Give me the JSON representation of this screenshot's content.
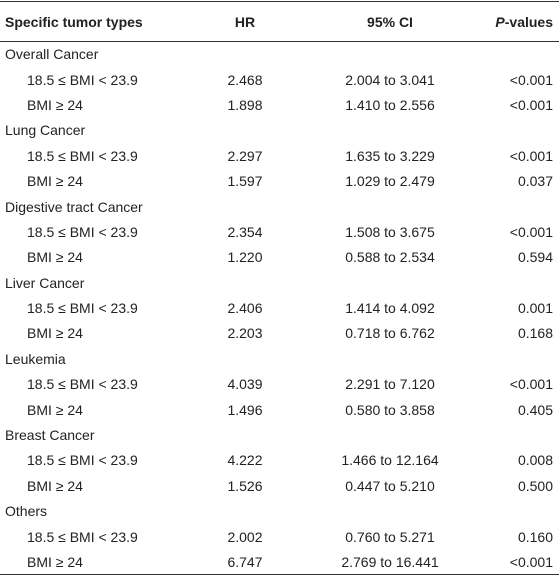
{
  "table": {
    "header": [
      "Specific tumor types",
      "HR",
      "95% CI",
      "P-values"
    ],
    "groups": [
      {
        "name": "Overall Cancer",
        "rows": [
          [
            "18.5 ≤ BMI < 23.9",
            "2.468",
            "2.004 to 3.041",
            "<0.001"
          ],
          [
            "BMI ≥ 24",
            "1.898",
            "1.410 to 2.556",
            "<0.001"
          ]
        ]
      },
      {
        "name": "Lung Cancer",
        "rows": [
          [
            "18.5 ≤ BMI < 23.9",
            "2.297",
            "1.635 to 3.229",
            "<0.001"
          ],
          [
            "BMI ≥ 24",
            "1.597",
            "1.029 to 2.479",
            "0.037"
          ]
        ]
      },
      {
        "name": "Digestive tract Cancer",
        "rows": [
          [
            "18.5 ≤ BMI < 23.9",
            "2.354",
            "1.508 to 3.675",
            "<0.001"
          ],
          [
            "BMI ≥ 24",
            "1.220",
            "0.588 to 2.534",
            "0.594"
          ]
        ]
      },
      {
        "name": "Liver Cancer",
        "rows": [
          [
            "18.5 ≤ BMI < 23.9",
            "2.406",
            "1.414 to 4.092",
            "0.001"
          ],
          [
            "BMI ≥ 24",
            "2.203",
            "0.718 to 6.762",
            "0.168"
          ]
        ]
      },
      {
        "name": "Leukemia",
        "rows": [
          [
            "18.5 ≤ BMI < 23.9",
            "4.039",
            "2.291 to 7.120",
            "<0.001"
          ],
          [
            "BMI ≥ 24",
            "1.496",
            "0.580 to 3.858",
            "0.405"
          ]
        ]
      },
      {
        "name": "Breast Cancer",
        "rows": [
          [
            "18.5 ≤ BMI < 23.9",
            "4.222",
            "1.466 to 12.164",
            "0.008"
          ],
          [
            "BMI ≥ 24",
            "1.526",
            "0.447 to 5.210",
            "0.500"
          ]
        ]
      },
      {
        "name": "Others",
        "rows": [
          [
            "18.5 ≤ BMI < 23.9",
            "2.002",
            "0.760 to 5.271",
            "0.160"
          ],
          [
            "BMI ≥ 24",
            "6.747",
            "2.769 to 16.441",
            "<0.001"
          ]
        ]
      }
    ]
  }
}
